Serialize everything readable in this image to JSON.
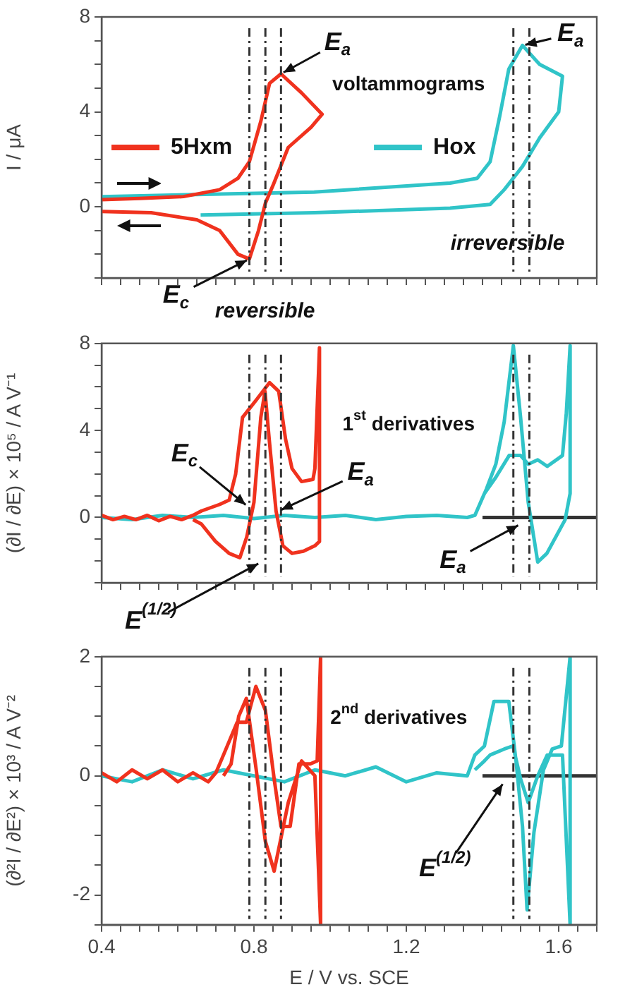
{
  "chart_data": [
    {
      "type": "line",
      "ylabel": "I / μA",
      "xlim": [
        0.4,
        1.7
      ],
      "ylim": [
        -3,
        8
      ],
      "tick_labels": "y",
      "legend": "left",
      "marker": "none",
      "line_style": "solid",
      "grid": false,
      "xticks": [
        0.4,
        {
          "value": 0.45,
          "label": null
        },
        {
          "value": 0.5,
          "label": null
        },
        {
          "value": 0.55,
          "label": null
        },
        {
          "value": 0.6,
          "label": null
        },
        {
          "value": 0.65,
          "label": null
        },
        {
          "value": 0.7,
          "label": null
        },
        {
          "value": 0.75,
          "label": null
        },
        0.8,
        {
          "value": 0.85,
          "label": null
        },
        {
          "value": 0.9,
          "label": null
        },
        {
          "value": 0.95,
          "label": null
        },
        {
          "value": 1.0,
          "label": null
        },
        {
          "value": 1.05,
          "label": null
        },
        {
          "value": 1.1,
          "label": null
        },
        {
          "value": 1.15,
          "label": null
        },
        1.2,
        {
          "value": 1.25,
          "label": null
        },
        {
          "value": 1.3,
          "label": null
        },
        {
          "value": 1.35,
          "label": null
        },
        {
          "value": 1.4,
          "label": null
        },
        {
          "value": 1.45,
          "label": null
        },
        {
          "value": 1.5,
          "label": null
        },
        {
          "value": 1.55,
          "label": null
        },
        1.6,
        {
          "value": 1.65,
          "label": null
        },
        {
          "value": 1.7,
          "label": null
        }
      ],
      "yticks": [
        {
          "value": -3,
          "label": null
        },
        {
          "value": -2,
          "label": null
        },
        {
          "value": -1,
          "label": null
        },
        0,
        {
          "value": 1,
          "label": null
        },
        {
          "value": 2,
          "label": null
        },
        {
          "value": 3,
          "label": null
        },
        4,
        {
          "value": 5,
          "label": null
        },
        {
          "value": 6,
          "label": null
        },
        {
          "value": 7,
          "label": null
        },
        8
      ],
      "ref_lines": [
        {
          "axis": "x",
          "value": 0.788,
          "color": "#333333",
          "line_style": "dashed"
        },
        {
          "axis": "x",
          "value": 0.83,
          "color": "#333333",
          "line_style": "dashed"
        },
        {
          "axis": "x",
          "value": 0.871,
          "color": "#333333",
          "line_style": "dashed"
        },
        {
          "axis": "x",
          "value": 1.481,
          "color": "#333333",
          "line_style": "dashed"
        },
        {
          "axis": "x",
          "value": 1.523,
          "color": "#333333",
          "line_style": "dashed"
        }
      ],
      "annotations": [
        {
          "text": "E$_{a}$",
          "x": 0.871,
          "y": 5.6
        },
        "voltammograms",
        {
          "text": "E$_{c}$",
          "x": 0.788,
          "y": -2.2
        },
        "reversible",
        {
          "text": "E$_{a}$",
          "x": 1.505,
          "y": 6.8
        },
        "irreversible"
      ],
      "series": [
        {
          "name": "5Hxm",
          "color": "#f0321e",
          "x": [
            0.4,
            0.5,
            0.615,
            0.71,
            0.758,
            0.788,
            0.818,
            0.841,
            0.871,
            0.925,
            0.979,
            0.95,
            0.89,
            0.87,
            0.85,
            0.83,
            0.812,
            0.788,
            0.758,
            0.71,
            0.65,
            0.53,
            0.4
          ],
          "values": [
            0.3,
            0.35,
            0.43,
            0.72,
            1.2,
            1.9,
            3.6,
            5.2,
            5.6,
            4.8,
            3.9,
            3.35,
            2.5,
            1.7,
            0.9,
            0.15,
            -1.0,
            -2.2,
            -2.0,
            -1.0,
            -0.55,
            -0.25,
            -0.2
          ]
        },
        {
          "name": "Hox",
          "color": "#30c4c8",
          "x": [
            0.4,
            0.958,
            1.315,
            1.386,
            1.42,
            1.445,
            1.469,
            1.505,
            1.55,
            1.61,
            1.6,
            1.55,
            1.505,
            1.457,
            1.42,
            1.315,
            0.958,
            0.66
          ],
          "values": [
            0.43,
            0.62,
            1.0,
            1.2,
            1.9,
            3.8,
            5.8,
            6.8,
            6.0,
            5.5,
            4.0,
            2.9,
            1.7,
            0.72,
            0.1,
            -0.06,
            -0.25,
            -0.35
          ]
        }
      ]
    },
    {
      "type": "line",
      "ylabel": "(∂I / ∂E) × 10⁵ / A V⁻¹",
      "xlim": [
        0.4,
        1.7
      ],
      "ylim": [
        -3,
        8
      ],
      "tick_labels": "y",
      "marker": "none",
      "line_style": "solid",
      "grid": false,
      "xticks": [
        0.4,
        {
          "value": 0.45,
          "label": null
        },
        {
          "value": 0.5,
          "label": null
        },
        {
          "value": 0.55,
          "label": null
        },
        {
          "value": 0.6,
          "label": null
        },
        {
          "value": 0.65,
          "label": null
        },
        {
          "value": 0.7,
          "label": null
        },
        {
          "value": 0.75,
          "label": null
        },
        0.8,
        {
          "value": 0.85,
          "label": null
        },
        {
          "value": 0.9,
          "label": null
        },
        {
          "value": 0.95,
          "label": null
        },
        {
          "value": 1.0,
          "label": null
        },
        {
          "value": 1.05,
          "label": null
        },
        {
          "value": 1.1,
          "label": null
        },
        {
          "value": 1.15,
          "label": null
        },
        1.2,
        {
          "value": 1.25,
          "label": null
        },
        {
          "value": 1.3,
          "label": null
        },
        {
          "value": 1.35,
          "label": null
        },
        {
          "value": 1.4,
          "label": null
        },
        {
          "value": 1.45,
          "label": null
        },
        {
          "value": 1.5,
          "label": null
        },
        {
          "value": 1.55,
          "label": null
        },
        1.6,
        {
          "value": 1.65,
          "label": null
        },
        {
          "value": 1.7,
          "label": null
        }
      ],
      "yticks": [
        {
          "value": -3,
          "label": null
        },
        {
          "value": -2,
          "label": null
        },
        {
          "value": -1,
          "label": null
        },
        0,
        {
          "value": 1,
          "label": null
        },
        {
          "value": 2,
          "label": null
        },
        {
          "value": 3,
          "label": null
        },
        4,
        {
          "value": 5,
          "label": null
        },
        {
          "value": 6,
          "label": null
        },
        {
          "value": 7,
          "label": null
        },
        8
      ],
      "ref_lines": [
        {
          "axis": "x",
          "value": 0.788,
          "color": "#333333",
          "line_style": "dashed"
        },
        {
          "axis": "x",
          "value": 0.83,
          "color": "#333333",
          "line_style": "dashed"
        },
        {
          "axis": "x",
          "value": 0.871,
          "color": "#333333",
          "line_style": "dashed"
        },
        {
          "axis": "x",
          "value": 1.481,
          "color": "#333333",
          "line_style": "dashed"
        },
        {
          "axis": "x",
          "value": 1.523,
          "color": "#333333",
          "line_style": "dashed"
        }
      ],
      "annotations": [
        "1$^{st}$ derivatives",
        {
          "text": "E$_{c}$",
          "x": 0.784,
          "y": 0.5
        },
        {
          "text": "E$_{a}$",
          "x": 0.865,
          "y": 0.3
        },
        {
          "text": "E$^{(1/2)}$",
          "x": 0.818,
          "y": -2.06
        },
        {
          "text": "E$_{a}$",
          "x": 1.5,
          "y": -0.3
        }
      ],
      "series": [
        {
          "color": "#f0321e",
          "x": [
            0.4,
            0.43,
            0.46,
            0.49,
            0.52,
            0.55,
            0.58,
            0.61,
            0.64,
            0.662,
            0.71,
            0.735,
            0.752,
            0.77,
            0.806,
            0.841,
            0.865,
            0.883,
            0.9,
            0.925,
            0.955,
            0.96,
            0.972,
            0.972,
            0.96,
            0.93,
            0.9,
            0.876,
            0.858,
            0.84,
            0.829,
            0.818,
            0.8,
            0.781,
            0.763,
            0.735,
            0.699,
            0.662,
            0.64
          ],
          "values": [
            0.1,
            -0.1,
            0.05,
            -0.1,
            0.1,
            -0.15,
            0.05,
            -0.1,
            0.1,
            0.3,
            0.6,
            0.8,
            2.0,
            4.6,
            5.4,
            6.2,
            5.8,
            3.6,
            2.25,
            1.65,
            1.75,
            2.25,
            7.8,
            -1.1,
            -1.3,
            -1.55,
            -1.65,
            -1.3,
            0.3,
            3.6,
            5.8,
            4.6,
            0.7,
            -0.9,
            -1.85,
            -1.65,
            -1.1,
            -0.3,
            -0.1
          ]
        },
        {
          "color": "#30c4c8",
          "x": [
            0.4,
            0.48,
            0.56,
            0.64,
            0.72,
            0.8,
            0.88,
            0.96,
            1.04,
            1.12,
            1.2,
            1.28,
            1.36,
            1.38,
            1.41,
            1.435,
            1.457,
            1.481,
            1.5,
            1.52,
            1.545,
            1.569,
            1.586,
            1.617,
            1.63,
            1.63,
            1.62,
            1.61,
            1.57,
            1.545,
            1.52,
            1.5,
            1.47,
            1.435,
            1.405,
            1.38
          ],
          "values": [
            0,
            -0.1,
            0.1,
            0,
            0.1,
            -0.05,
            0.1,
            0,
            0.1,
            -0.1,
            0.05,
            0.1,
            0,
            0.1,
            1.3,
            2.45,
            4.4,
            7.9,
            4.6,
            0.7,
            -2.05,
            -1.65,
            -1.1,
            -0.1,
            1.1,
            7.9,
            4.8,
            2.85,
            2.35,
            2.65,
            2.45,
            2.85,
            2.85,
            1.85,
            1.1,
            0.1
          ]
        },
        {
          "color": "#333333",
          "x": [
            1.4,
            1.7
          ],
          "values": [
            0,
            0
          ]
        }
      ]
    },
    {
      "type": "line",
      "ylabel": "(∂²I / ∂E²) × 10³ / A V⁻²",
      "xlabel": "E / V vs. SCE",
      "xlim": [
        0.4,
        1.7
      ],
      "ylim": [
        -2.5,
        2
      ],
      "marker": "none",
      "line_style": "solid",
      "grid": false,
      "xticks": [
        0.4,
        {
          "value": 0.45,
          "label": null
        },
        {
          "value": 0.5,
          "label": null
        },
        {
          "value": 0.55,
          "label": null
        },
        {
          "value": 0.6,
          "label": null
        },
        {
          "value": 0.65,
          "label": null
        },
        {
          "value": 0.7,
          "label": null
        },
        {
          "value": 0.75,
          "label": null
        },
        0.8,
        {
          "value": 0.85,
          "label": null
        },
        {
          "value": 0.9,
          "label": null
        },
        {
          "value": 0.95,
          "label": null
        },
        {
          "value": 1.0,
          "label": null
        },
        {
          "value": 1.05,
          "label": null
        },
        {
          "value": 1.1,
          "label": null
        },
        {
          "value": 1.15,
          "label": null
        },
        1.2,
        {
          "value": 1.25,
          "label": null
        },
        {
          "value": 1.3,
          "label": null
        },
        {
          "value": 1.35,
          "label": null
        },
        {
          "value": 1.4,
          "label": null
        },
        {
          "value": 1.45,
          "label": null
        },
        {
          "value": 1.5,
          "label": null
        },
        {
          "value": 1.55,
          "label": null
        },
        1.6,
        {
          "value": 1.65,
          "label": null
        },
        {
          "value": 1.7,
          "label": null
        }
      ],
      "yticks": [
        {
          "value": -2.5,
          "label": null
        },
        -2,
        {
          "value": -1.5,
          "label": null
        },
        {
          "value": -1,
          "label": null
        },
        {
          "value": -0.5,
          "label": null
        },
        0,
        {
          "value": 0.5,
          "label": null
        },
        {
          "value": 1,
          "label": null
        },
        {
          "value": 1.5,
          "label": null
        },
        2
      ],
      "ref_lines": [
        {
          "axis": "x",
          "value": 0.788,
          "color": "#333333",
          "line_style": "dashed"
        },
        {
          "axis": "x",
          "value": 0.83,
          "color": "#333333",
          "line_style": "dashed"
        },
        {
          "axis": "x",
          "value": 0.871,
          "color": "#333333",
          "line_style": "dashed"
        },
        {
          "axis": "x",
          "value": 1.481,
          "color": "#333333",
          "line_style": "dashed"
        },
        {
          "axis": "x",
          "value": 1.523,
          "color": "#333333",
          "line_style": "dashed"
        }
      ],
      "annotations": [
        "2$^{nd}$ derivatives",
        {
          "text": "E$^{(1/2)}$",
          "x": 1.457,
          "y": -0.1
        }
      ],
      "series": [
        {
          "color": "#f0321e",
          "x": [
            0.4,
            0.44,
            0.48,
            0.52,
            0.56,
            0.6,
            0.64,
            0.68,
            0.7,
            0.72,
            0.756,
            0.78,
            0.805,
            0.83,
            0.853,
            0.871,
            0.895,
            0.918,
            0.948,
            0.966,
            0.975,
            0.975,
            0.96,
            0.925,
            0.89,
            0.853,
            0.83,
            0.806,
            0.78,
            0.76,
            0.74,
            0.72
          ],
          "values": [
            0.05,
            -0.1,
            0.1,
            -0.05,
            0.1,
            -0.1,
            0.05,
            -0.1,
            0.05,
            0.35,
            0.9,
            0.9,
            1.5,
            1.1,
            -0.05,
            -0.85,
            -0.85,
            0.2,
            0.2,
            0.25,
            2,
            -2.5,
            0,
            0.25,
            -0.45,
            -1.6,
            -1.1,
            0.1,
            1.3,
            1.0,
            0.2,
            0
          ]
        },
        {
          "color": "#30c4c8",
          "x": [
            0.4,
            0.48,
            0.56,
            0.64,
            0.72,
            0.8,
            0.88,
            0.96,
            1.04,
            1.12,
            1.2,
            1.28,
            1.36,
            1.38,
            1.405,
            1.43,
            1.469,
            1.488,
            1.505,
            1.517,
            1.535,
            1.56,
            1.583,
            1.607,
            1.63,
            1.63,
            1.61,
            1.57,
            1.545,
            1.52,
            1.5,
            1.48,
            1.457,
            1.42,
            1.405,
            1.38
          ],
          "values": [
            0,
            -0.1,
            0.1,
            -0.05,
            0.1,
            0,
            -0.1,
            0.1,
            0,
            0.15,
            -0.1,
            0.05,
            0,
            0.35,
            0.5,
            1.25,
            1.25,
            0.25,
            -0.85,
            -2.25,
            -0.95,
            0.1,
            0.45,
            0.5,
            2,
            -2.5,
            0.35,
            0.35,
            0,
            -0.45,
            -0.05,
            0.5,
            0.45,
            0.35,
            0.25,
            0.1
          ]
        },
        {
          "color": "#333333",
          "x": [
            1.4,
            1.7
          ],
          "values": [
            0,
            0
          ]
        }
      ]
    }
  ]
}
